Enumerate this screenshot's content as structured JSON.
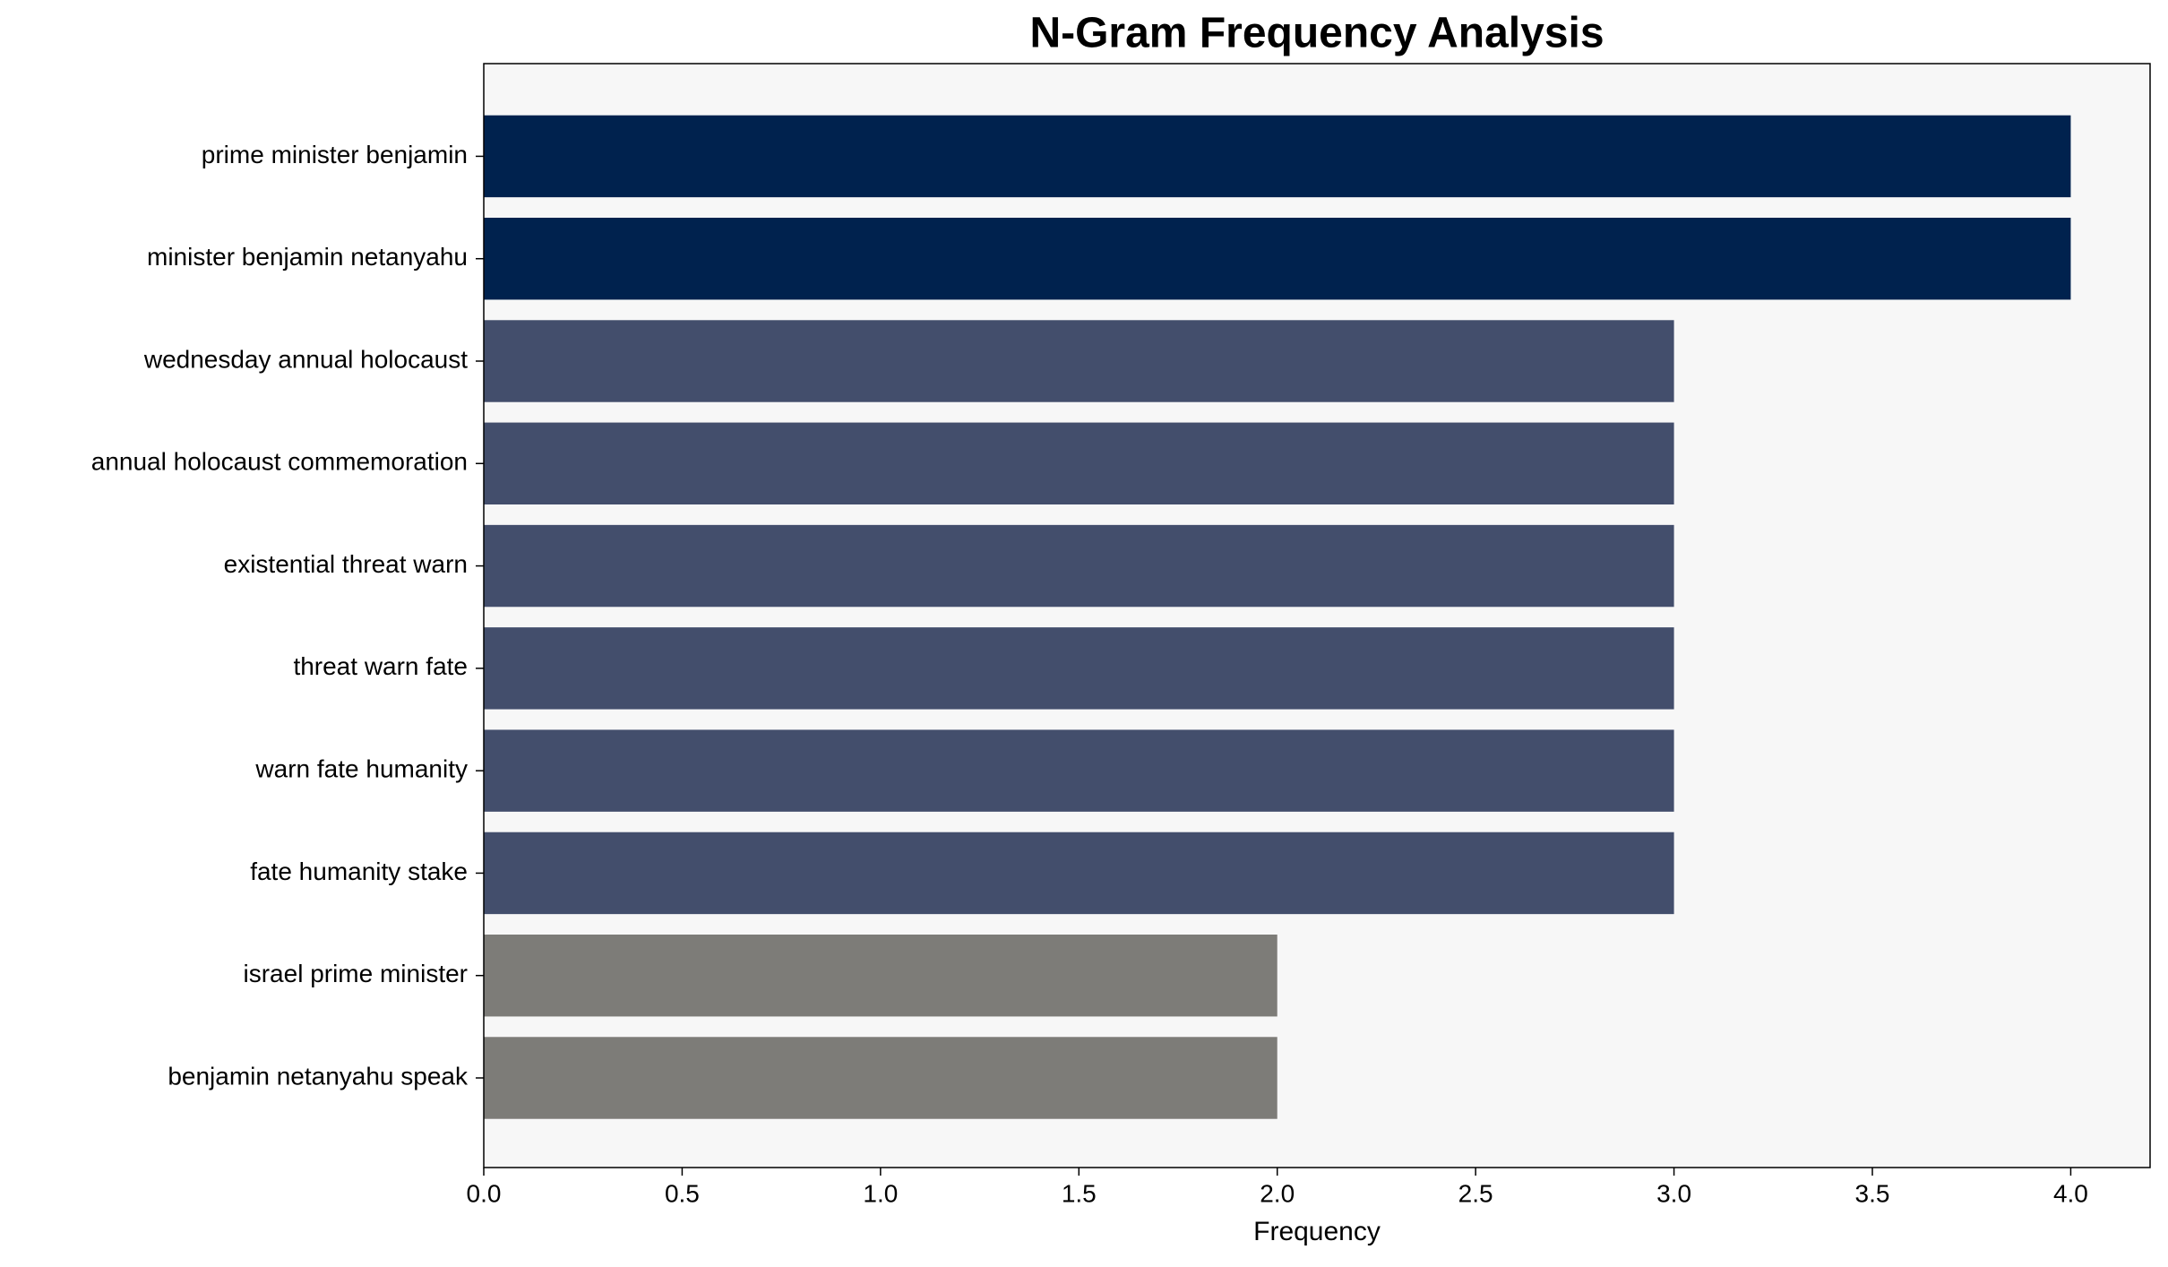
{
  "chart_data": {
    "type": "bar",
    "orientation": "horizontal",
    "title": "N-Gram Frequency Analysis",
    "x_label": "Frequency",
    "categories": [
      "prime minister benjamin",
      "minister benjamin netanyahu",
      "wednesday annual holocaust",
      "annual holocaust commemoration",
      "existential threat warn",
      "threat warn fate",
      "warn fate humanity",
      "fate humanity stake",
      "israel prime minister",
      "benjamin netanyahu speak"
    ],
    "values": [
      4,
      4,
      3,
      3,
      3,
      3,
      3,
      3,
      2,
      2
    ],
    "colors": [
      "#00224e",
      "#00224e",
      "#434e6c",
      "#434e6c",
      "#434e6c",
      "#434e6c",
      "#434e6c",
      "#434e6c",
      "#7d7c78",
      "#7d7c78"
    ],
    "xlim": [
      0,
      4.2
    ],
    "xticks": [
      {
        "value": 0,
        "label": "0.0"
      },
      0.5,
      {
        "value": 1,
        "label": "1.0"
      },
      1.5,
      {
        "value": 2,
        "label": "2.0"
      },
      2.5,
      {
        "value": 3,
        "label": "3.0"
      },
      3.5,
      {
        "value": 4,
        "label": "4.0"
      }
    ],
    "plot_background": "#f7f7f7",
    "grid": false
  }
}
